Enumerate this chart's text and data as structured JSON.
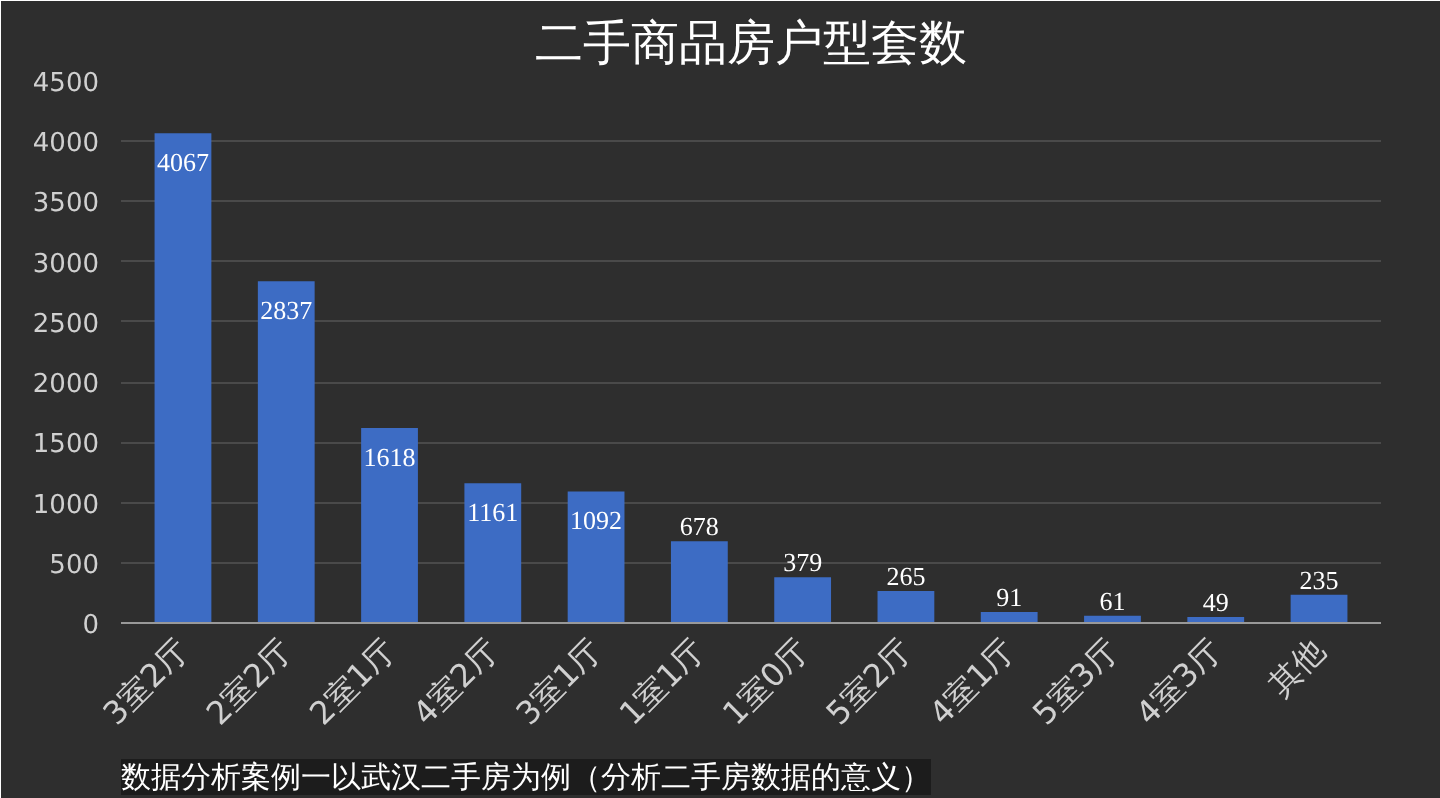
{
  "chart_data": {
    "type": "bar",
    "title": "二手商品房户型套数",
    "categories": [
      "3室2厅",
      "2室2厅",
      "2室1厅",
      "4室2厅",
      "3室1厅",
      "1室1厅",
      "1室0厅",
      "5室2厅",
      "4室1厅",
      "5室3厅",
      "4室3厅",
      "其他"
    ],
    "values": [
      4067,
      2837,
      1618,
      1161,
      1092,
      678,
      379,
      265,
      91,
      61,
      49,
      235
    ],
    "color": "#3d6cc4",
    "ylim": [
      0,
      4500
    ],
    "yticks": [
      0,
      500,
      1000,
      1500,
      2000,
      2500,
      3000,
      3500,
      4000,
      4500
    ],
    "grid": "y",
    "data_labels": true,
    "annotations": [
      "数据分析案例一以武汉二手房为例（分析二手房数据的意义）"
    ]
  }
}
